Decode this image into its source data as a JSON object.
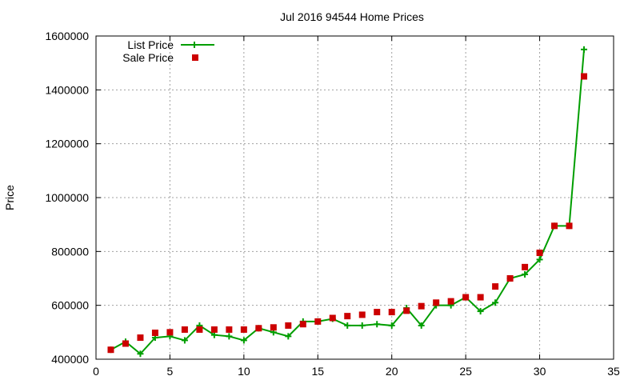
{
  "chart_data": {
    "type": "line",
    "title": "Jul 2016 94544 Home Prices",
    "xlabel": "",
    "ylabel": "Price",
    "xlim": [
      0,
      35
    ],
    "ylim": [
      400000,
      1600000
    ],
    "xticks": [
      "0",
      "5",
      "10",
      "15",
      "20",
      "25",
      "30",
      "35"
    ],
    "yticks": [
      "400000",
      "600000",
      "800000",
      "1000000",
      "1200000",
      "1400000",
      "1600000"
    ],
    "grid": true,
    "legend_position": "top-left",
    "x": [
      1,
      2,
      3,
      4,
      5,
      6,
      7,
      8,
      9,
      10,
      11,
      12,
      13,
      14,
      15,
      16,
      17,
      18,
      19,
      20,
      21,
      22,
      23,
      24,
      25,
      26,
      27,
      28,
      29,
      30,
      31,
      32,
      33
    ],
    "series": [
      {
        "name": "List Price",
        "style": "line-with-plus-markers",
        "color": "#009e00",
        "values": [
          435000,
          465000,
          420000,
          480000,
          485000,
          470000,
          525000,
          490000,
          485000,
          470000,
          515000,
          500000,
          485000,
          540000,
          540000,
          550000,
          525000,
          525000,
          530000,
          525000,
          590000,
          525000,
          600000,
          600000,
          630000,
          578000,
          610000,
          700000,
          715000,
          770000,
          895000,
          895000,
          1550000
        ]
      },
      {
        "name": "Sale Price",
        "style": "square-markers",
        "color": "#cc0000",
        "values": [
          435000,
          458000,
          480000,
          498000,
          500000,
          510000,
          510000,
          510000,
          510000,
          510000,
          515000,
          518000,
          525000,
          530000,
          540000,
          553000,
          560000,
          565000,
          575000,
          575000,
          580000,
          597000,
          610000,
          615000,
          630000,
          630000,
          670000,
          700000,
          742000,
          795000,
          895000,
          895000,
          1450000
        ]
      }
    ]
  }
}
